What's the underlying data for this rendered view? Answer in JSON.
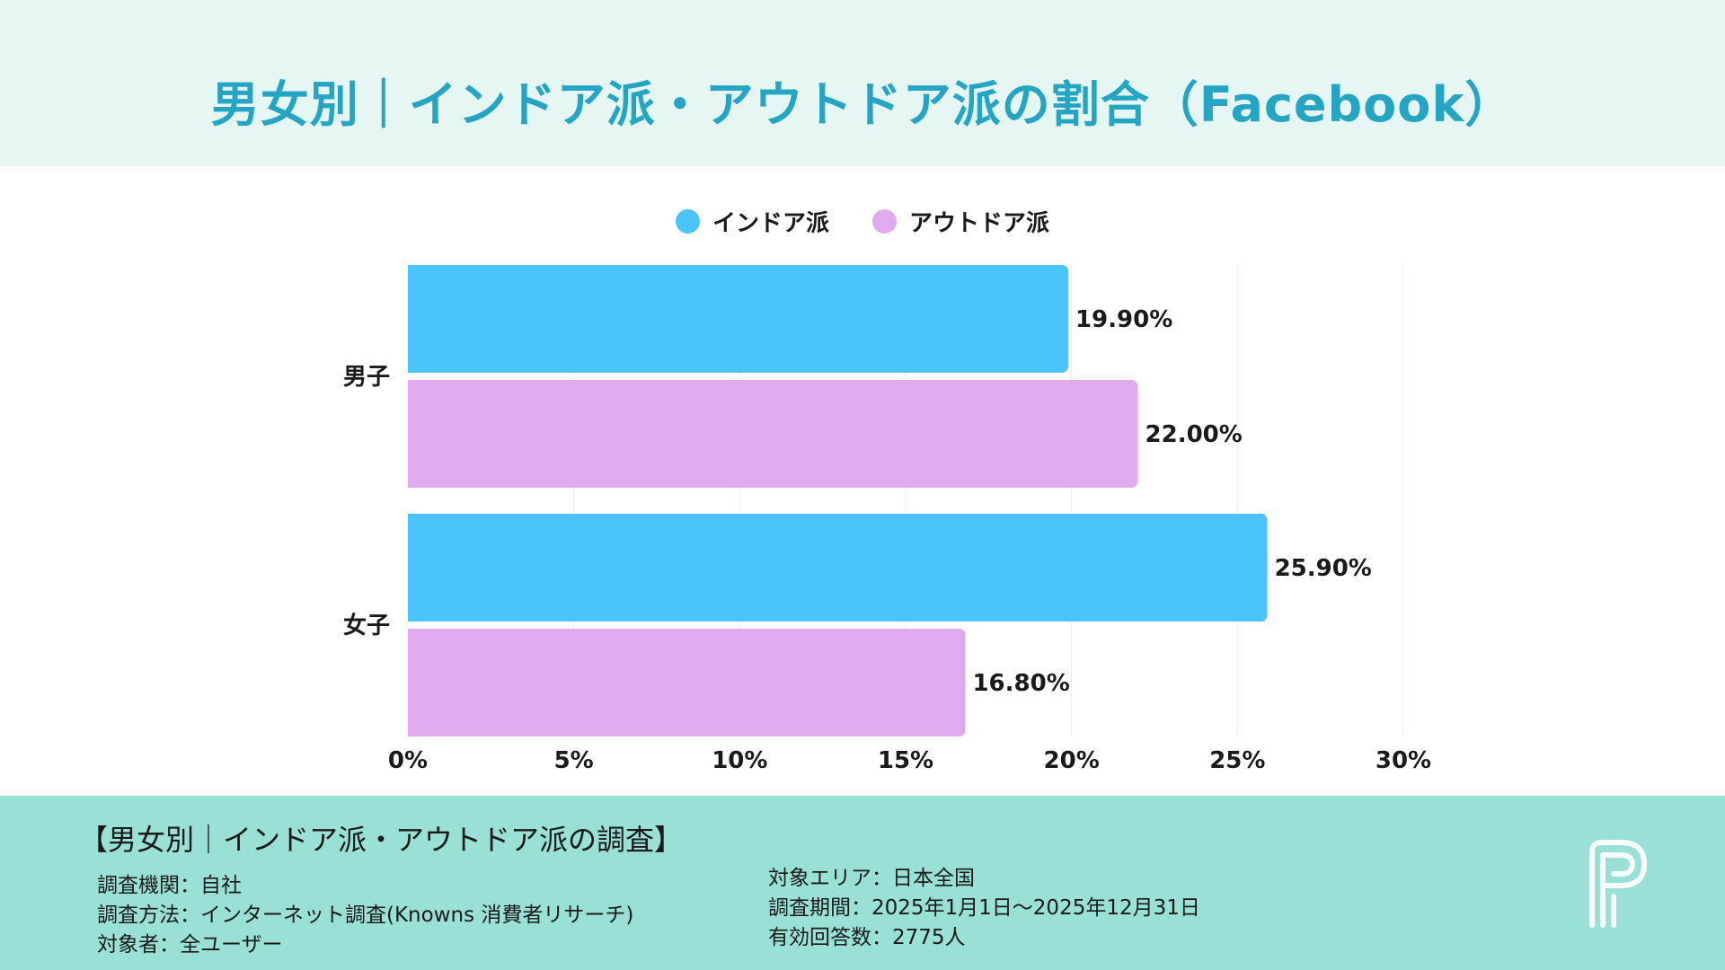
{
  "header": {
    "title": "男女別｜インドア派・アウトドア派の割合（Facebook）"
  },
  "legend": [
    {
      "label": "インドア派",
      "color": "#4ac4fb"
    },
    {
      "label": "アウトドア派",
      "color": "#e2aaee"
    }
  ],
  "chart_data": {
    "type": "bar",
    "orientation": "horizontal",
    "categories": [
      "男子",
      "女子"
    ],
    "series": [
      {
        "name": "インドア派",
        "values": [
          19.9,
          25.9
        ],
        "labels": [
          "19.90%",
          "25.90%"
        ],
        "color": "#4ac4fb"
      },
      {
        "name": "アウトドア派",
        "values": [
          22.0,
          16.8
        ],
        "labels": [
          "22.00%",
          "16.80%"
        ],
        "color": "#e2aaee"
      }
    ],
    "xlim": [
      0,
      30
    ],
    "xticks": [
      0,
      5,
      10,
      15,
      20,
      25,
      30
    ],
    "xtick_labels": [
      "0%",
      "5%",
      "10%",
      "15%",
      "20%",
      "25%",
      "30%"
    ],
    "grid": true,
    "legend_position": "top-center"
  },
  "footer": {
    "title": "【男女別｜インドア派・アウトドア派の調査】",
    "left_lines": [
      "調査機関：自社",
      "調査方法：インターネット調査(Knowns 消費者リサーチ)",
      "対象者：全ユーザー"
    ],
    "right_lines": [
      "対象エリア：日本全国",
      "調査期間：2025年1月1日〜2025年12月31日",
      "有効回答数：2775人"
    ]
  },
  "colors": {
    "accent": "#24a5c3",
    "header_bg": "#e6f6f3",
    "footer_bg": "#99e0d6"
  }
}
